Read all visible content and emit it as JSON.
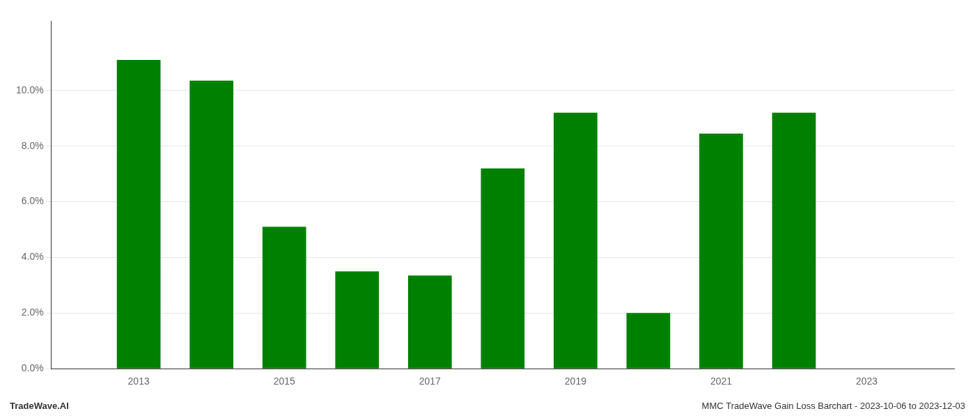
{
  "chart_data": {
    "type": "bar",
    "x": [
      2013,
      2014,
      2015,
      2016,
      2017,
      2018,
      2019,
      2020,
      2021,
      2022
    ],
    "values": [
      0.111,
      0.1035,
      0.051,
      0.035,
      0.0335,
      0.072,
      0.092,
      0.02,
      0.0845,
      0.092
    ],
    "color": "#008000",
    "xlim": [
      2011.8,
      2024.2
    ],
    "xticks": [
      2013,
      2015,
      2017,
      2019,
      2021,
      2023
    ],
    "ylim": [
      0,
      0.125
    ],
    "yticks": [
      {
        "value": 0.0,
        "label": "0.0%"
      },
      {
        "value": 0.02,
        "label": "2.0%"
      },
      {
        "value": 0.04,
        "label": "4.0%"
      },
      {
        "value": 0.06,
        "label": "6.0%"
      },
      {
        "value": 0.08,
        "label": "8.0%"
      },
      {
        "value": 0.1,
        "label": "10.0%"
      }
    ],
    "grid": "y",
    "annotations": [
      "TradeWave.AI",
      "MMC TradeWave Gain Loss Barchart - 2023-10-06 to 2023-12-03"
    ]
  }
}
